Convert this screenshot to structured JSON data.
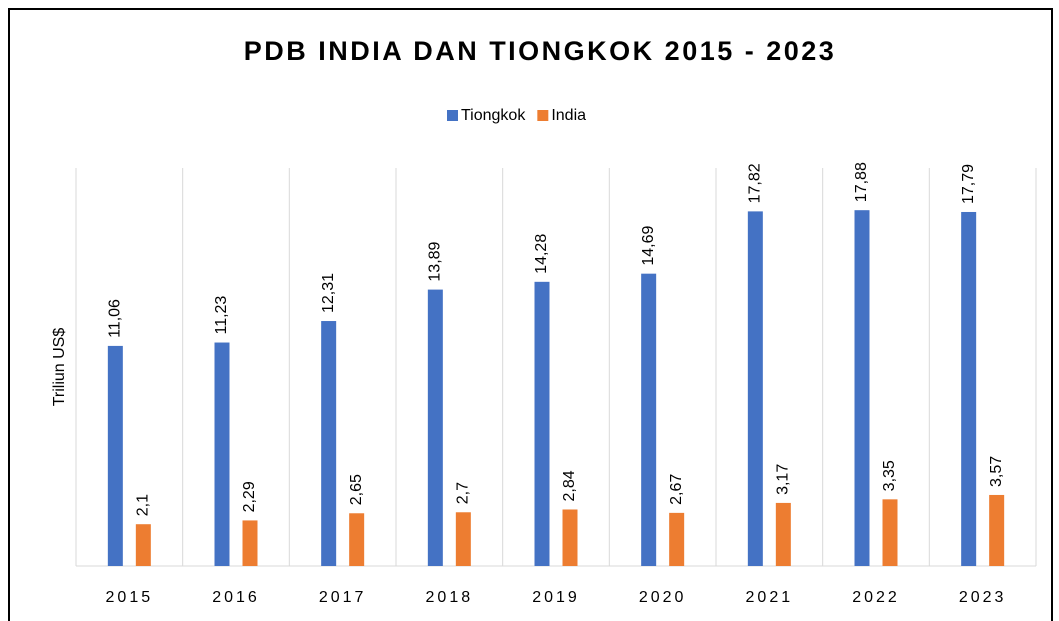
{
  "chart_data": {
    "type": "bar",
    "title": "PDB INDIA DAN TIONGKOK 2015 - 2023",
    "y_label": "Triliun US$",
    "categories": [
      "2015",
      "2016",
      "2017",
      "2018",
      "2019",
      "2020",
      "2021",
      "2022",
      "2023"
    ],
    "series": [
      {
        "name": "Tiongkok",
        "color": "#4472c4",
        "values": [
          11.06,
          11.23,
          12.31,
          13.89,
          14.28,
          14.69,
          17.82,
          17.88,
          17.79
        ],
        "value_labels": [
          "11,06",
          "11,23",
          "12,31",
          "13,89",
          "14,28",
          "14,69",
          "17,82",
          "17,88",
          "17,79"
        ]
      },
      {
        "name": "India",
        "color": "#ed7d31",
        "values": [
          2.1,
          2.29,
          2.65,
          2.7,
          2.84,
          2.67,
          3.17,
          3.35,
          3.57
        ],
        "value_labels": [
          "2,1",
          "2,29",
          "2,65",
          "2,7",
          "2,84",
          "2,67",
          "3,17",
          "3,35",
          "3,57"
        ]
      }
    ],
    "ylim": [
      0,
      20
    ],
    "legend": "top"
  }
}
